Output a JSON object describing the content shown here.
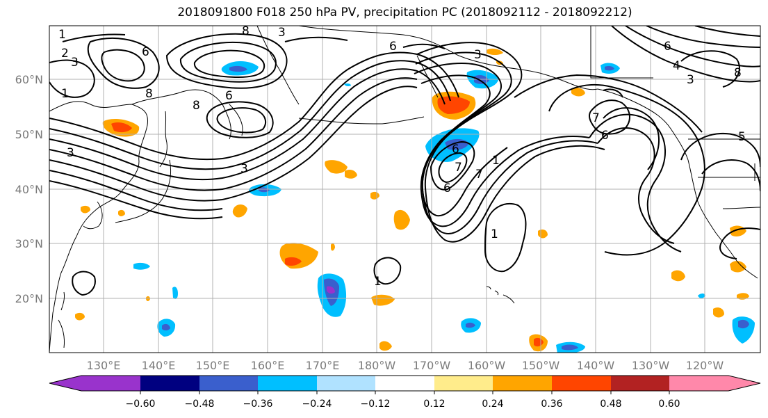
{
  "title": "2018091800 F018 250 hPa PV, precipitation PC (2018092112 - 2018092212)",
  "latitude_labels": [
    "60°N",
    "50°N",
    "40°N",
    "30°N",
    "20°N"
  ],
  "longitude_labels": [
    "130°E",
    "140°E",
    "150°E",
    "160°E",
    "170°E",
    "180°W",
    "170°W",
    "160°W",
    "150°W",
    "140°W",
    "130°W",
    "120°W"
  ],
  "colorbar": {
    "tick_labels": [
      "−0.60",
      "−0.48",
      "−0.36",
      "−0.24",
      "−0.12",
      "0.12",
      "0.24",
      "0.36",
      "0.48",
      "0.60"
    ],
    "colors": [
      "#9933cc",
      "#000080",
      "#3a5fcd",
      "#00bfff",
      "#b0e2ff",
      "#ffffff",
      "#ffec8b",
      "#ffa500",
      "#ff4500",
      "#b22222",
      "#ff88aa"
    ]
  },
  "contour_labels": [
    "8",
    "8",
    "6",
    "8",
    "6",
    "3",
    "3",
    "2",
    "3",
    "1",
    "3",
    "6",
    "7",
    "7",
    "6",
    "1",
    "1",
    "6",
    "7",
    "1",
    "6",
    "4",
    "5",
    "8",
    "3",
    "6",
    "1",
    "3"
  ],
  "colors": {
    "coast": "#000000",
    "grid": "#b0b0b0",
    "contour": "#000000",
    "label_gray": "#7a7a7a"
  }
}
